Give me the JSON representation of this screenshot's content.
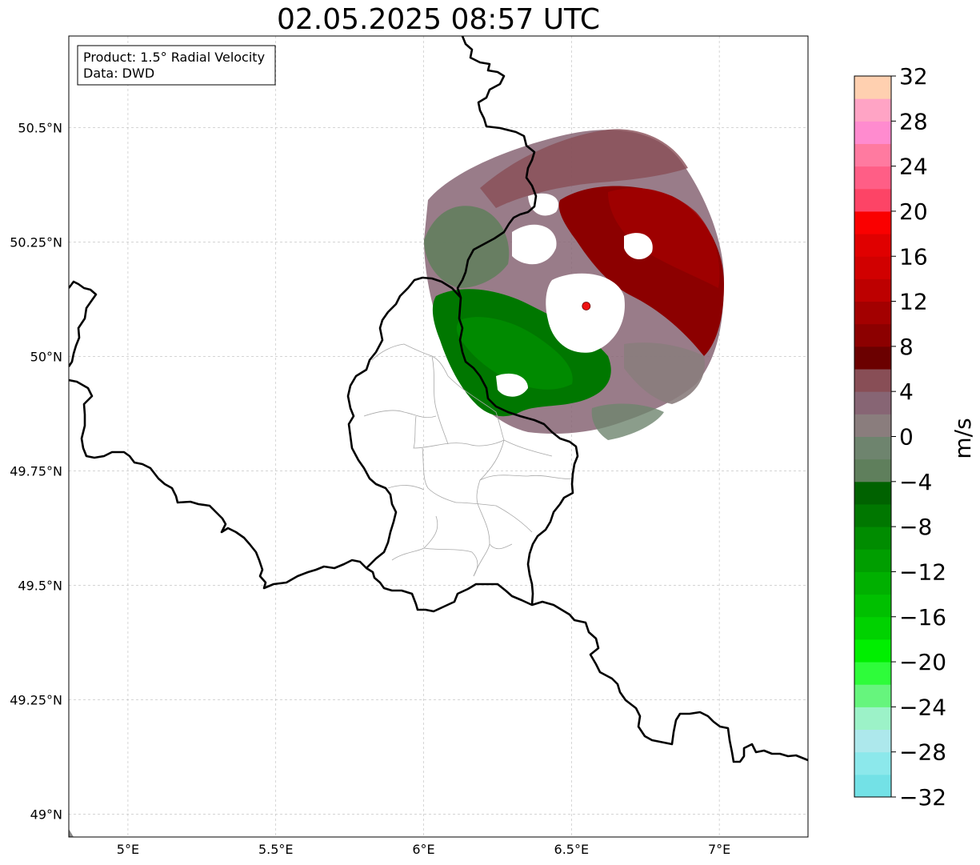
{
  "title": "02.05.2025 08:57 UTC",
  "info_box": {
    "line1": "Product: 1.5° Radial Velocity",
    "line2": "Data: DWD"
  },
  "map": {
    "lon_range": [
      4.8,
      7.3
    ],
    "lat_range": [
      48.95,
      50.7
    ],
    "lat_ticks": [
      {
        "value": 50.5,
        "label": "50.5°N"
      },
      {
        "value": 50.25,
        "label": "50.25°N"
      },
      {
        "value": 50.0,
        "label": "50°N"
      },
      {
        "value": 49.75,
        "label": "49.75°N"
      },
      {
        "value": 49.5,
        "label": "49.5°N"
      },
      {
        "value": 49.25,
        "label": "49.25°N"
      },
      {
        "value": 49.0,
        "label": "49°N"
      }
    ],
    "lon_ticks": [
      {
        "value": 5.0,
        "label": "5°E"
      },
      {
        "value": 5.5,
        "label": "5.5°E"
      },
      {
        "value": 6.0,
        "label": "6°E"
      },
      {
        "value": 6.5,
        "label": "6.5°E"
      },
      {
        "value": 7.0,
        "label": "7°E"
      }
    ],
    "radar_site": {
      "lon": 6.55,
      "lat": 50.11
    },
    "colors": {
      "border": "#000000",
      "admin": "#a8a8a8",
      "grid": "#bcbcbc",
      "site": "#ee1111"
    }
  },
  "colorbar": {
    "unit": "m/s",
    "min": -32,
    "max": 32,
    "colors": [
      "#73e1e6",
      "#8ce8eb",
      "#ade8ec",
      "#9cf2c8",
      "#66f57d",
      "#2efc3a",
      "#00ef00",
      "#00d200",
      "#00c000",
      "#00b000",
      "#009e00",
      "#008c00",
      "#007700",
      "#006200",
      "#5f7f5c",
      "#6e846e",
      "#8a7d7d",
      "#876574",
      "#884e56",
      "#6b0000",
      "#8c0000",
      "#a30000",
      "#bd0000",
      "#d10000",
      "#e00000",
      "#fa0000",
      "#fd4466",
      "#ff5e86",
      "#ff7aa0",
      "#ff8bcf",
      "#ffa4c5",
      "#ffd0b0"
    ],
    "tick_labels": [
      {
        "value": 32,
        "label": "32"
      },
      {
        "value": 28,
        "label": "28"
      },
      {
        "value": 24,
        "label": "24"
      },
      {
        "value": 20,
        "label": "20"
      },
      {
        "value": 16,
        "label": "16"
      },
      {
        "value": 12,
        "label": "12"
      },
      {
        "value": 8,
        "label": "8"
      },
      {
        "value": 4,
        "label": "4"
      },
      {
        "value": 0,
        "label": "0"
      },
      {
        "value": -4,
        "label": "−4"
      },
      {
        "value": -8,
        "label": "−8"
      },
      {
        "value": -12,
        "label": "−12"
      },
      {
        "value": -16,
        "label": "−16"
      },
      {
        "value": -20,
        "label": "−20"
      },
      {
        "value": -24,
        "label": "−24"
      },
      {
        "value": -28,
        "label": "−28"
      },
      {
        "value": -32,
        "label": "−32"
      }
    ]
  }
}
